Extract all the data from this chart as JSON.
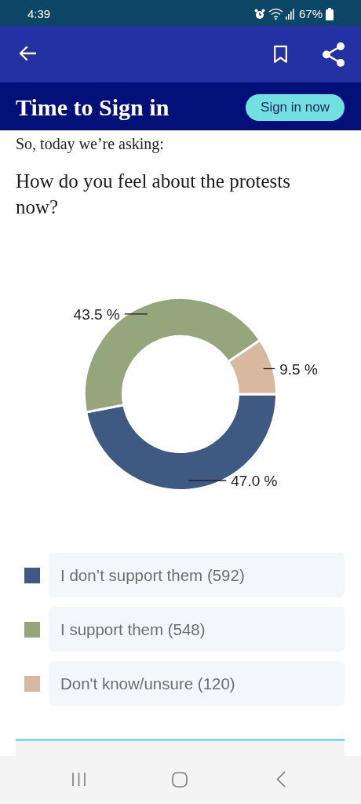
{
  "chart_data": {
    "type": "donut",
    "title": "How do you feel about the protests now?",
    "categories": [
      "I don’t support them (592)",
      "I support them (548)",
      "Don't know/unsure (120)"
    ],
    "values": [
      47.0,
      43.5,
      9.5
    ],
    "colors": [
      "#3f5a82",
      "#95a67c",
      "#d9b8a0"
    ],
    "value_labels": [
      "47.0 %",
      "43.5 %",
      "9.5 %"
    ],
    "legend": "bottom",
    "annotations": [
      "4:39",
      "67%",
      "Time to Sign in",
      "Sign in now",
      "So, today we’re asking:"
    ]
  }
}
